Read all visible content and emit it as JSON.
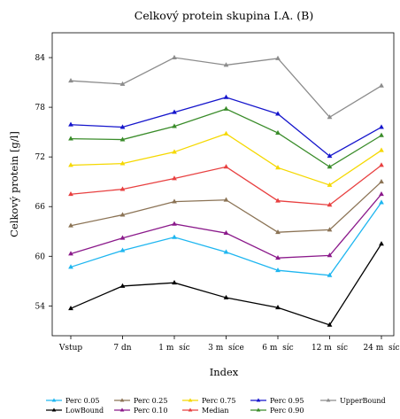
{
  "chart_data": {
    "type": "line",
    "title": "Celkový protein skupina I.A. (B)",
    "xlabel": "Index",
    "ylabel": "Celkový protein [g/l]",
    "categories": [
      "Vstup",
      "7 dn",
      "1 m  síc",
      "3 m  síce",
      "6 m  síc",
      "12 m  síc",
      "24 m  síc"
    ],
    "yticks": [
      54,
      60,
      66,
      72,
      78,
      84
    ],
    "ylim": [
      50.4,
      87.0
    ],
    "grid": false,
    "legend_position": "bottom",
    "series": [
      {
        "name": "Perc 0.05",
        "color": "#1EB6F0",
        "values": [
          58.7,
          60.7,
          62.3,
          60.5,
          58.3,
          57.7,
          66.5
        ]
      },
      {
        "name": "LowBound",
        "color": "#000000",
        "values": [
          53.7,
          56.4,
          56.8,
          55.0,
          53.8,
          51.7,
          61.5
        ]
      },
      {
        "name": "Perc 0.25",
        "color": "#8B7355",
        "values": [
          63.7,
          65.0,
          66.6,
          66.8,
          62.9,
          63.2,
          69.0
        ]
      },
      {
        "name": "Perc 0.10",
        "color": "#8B1A8B",
        "values": [
          60.3,
          62.2,
          63.9,
          62.8,
          59.8,
          60.1,
          67.5
        ]
      },
      {
        "name": "Perc 0.75",
        "color": "#F5D800",
        "values": [
          71.0,
          71.2,
          72.6,
          74.8,
          70.7,
          68.6,
          72.8
        ]
      },
      {
        "name": "Median",
        "color": "#E84040",
        "values": [
          67.5,
          68.1,
          69.4,
          70.8,
          66.7,
          66.2,
          71.0
        ]
      },
      {
        "name": "Perc 0.95",
        "color": "#1515CC",
        "values": [
          75.9,
          75.6,
          77.4,
          79.2,
          77.2,
          72.1,
          75.6
        ]
      },
      {
        "name": "Perc 0.90",
        "color": "#3A8C2A",
        "values": [
          74.2,
          74.1,
          75.7,
          77.8,
          74.9,
          70.8,
          74.6
        ]
      },
      {
        "name": "UpperBound",
        "color": "#8C8C8C",
        "values": [
          81.2,
          80.8,
          84.0,
          83.1,
          83.9,
          76.8,
          80.6
        ]
      }
    ]
  }
}
